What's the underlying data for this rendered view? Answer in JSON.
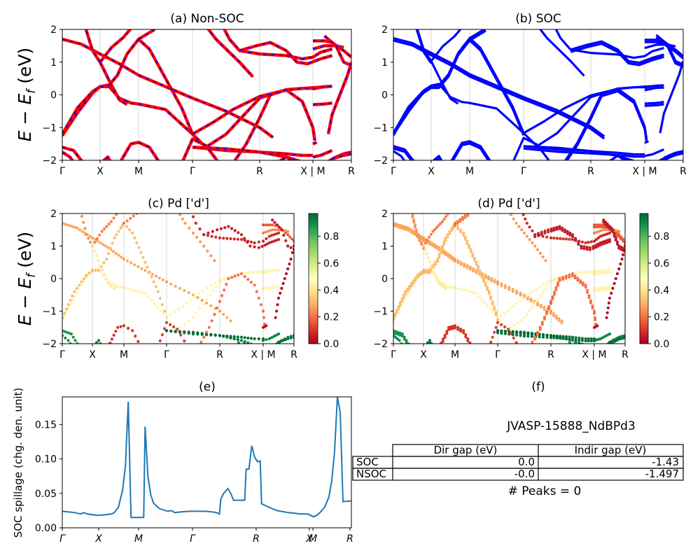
{
  "chart_data": [
    {
      "panel": "a",
      "type": "line",
      "title": "(a) Non-SOC",
      "ylabel_main": "E − E",
      "ylabel_sub": "f",
      "ylabel_unit": " (eV)",
      "ylim": [
        -2,
        2
      ],
      "yticks": [
        "2",
        "1",
        "0",
        "−1",
        "−2"
      ],
      "kpath": [
        "Γ",
        "X",
        "M",
        "Γ",
        "R",
        "X | M",
        "R"
      ],
      "colors": {
        "bands": "#ff0000",
        "dash": "#0000ff"
      }
    },
    {
      "panel": "b",
      "type": "line",
      "title": "(b) SOC",
      "ylim": [
        -2,
        2
      ],
      "yticks": [
        "2",
        "1",
        "0",
        "−1",
        "−2"
      ],
      "kpath": [
        "Γ",
        "X",
        "M",
        "Γ",
        "R",
        "X | M",
        "R"
      ],
      "colors": {
        "bands": "#0000ff"
      }
    },
    {
      "panel": "c",
      "type": "scatter",
      "title": "(c)  Pd ['d']",
      "ylabel_main": "E − E",
      "ylabel_sub": "f",
      "ylabel_unit": " (eV)",
      "ylim": [
        -2,
        2
      ],
      "yticks": [
        "2",
        "1",
        "0",
        "−1",
        "−2"
      ],
      "kpath": [
        "Γ",
        "X",
        "M",
        "Γ",
        "R",
        "X | M",
        "R"
      ],
      "colorbar_ticks": [
        "0.8",
        "0.6",
        "0.4",
        "0.2",
        "0.0"
      ],
      "colorbar_range": [
        0,
        0.97
      ],
      "colormap": "RdYlGn"
    },
    {
      "panel": "d",
      "type": "scatter",
      "title": "(d) Pd ['d']",
      "ylim": [
        -2,
        2
      ],
      "yticks": [
        "2",
        "1",
        "0",
        "−1",
        "−2"
      ],
      "kpath": [
        "Γ",
        "X",
        "M",
        "Γ",
        "R",
        "X | M",
        "R"
      ],
      "colorbar_ticks": [
        "0.8",
        "0.6",
        "0.4",
        "0.2",
        "0.0"
      ],
      "colorbar_range": [
        0,
        0.97
      ],
      "colormap": "RdYlGn"
    },
    {
      "panel": "e",
      "type": "line",
      "title": "(e)",
      "ylabel": "SOC spillage (chg. den. unit)",
      "ylim": [
        0,
        0.19
      ],
      "yticks": [
        "0.15",
        "0.10",
        "0.05",
        "0.00"
      ],
      "xticks": [
        "Γ",
        "X",
        "M",
        "Γ",
        "R",
        "X",
        "M",
        "R"
      ],
      "color": "#1f77b4",
      "x": [
        0,
        1,
        2,
        3,
        4,
        5,
        6,
        7,
        8,
        9,
        10,
        11,
        12,
        13,
        14,
        15,
        16,
        17,
        18,
        19,
        20,
        21,
        22,
        23,
        24,
        25,
        26,
        27,
        28,
        29,
        30,
        31,
        32,
        33,
        34,
        35,
        36,
        37,
        38,
        39,
        40,
        41,
        42,
        43,
        44,
        45,
        46,
        47,
        48,
        49,
        50,
        51,
        52,
        53,
        54,
        55,
        56,
        57,
        58,
        59,
        60,
        61,
        62,
        63,
        64,
        65,
        66,
        67,
        68,
        69,
        70,
        71,
        72,
        73,
        74,
        75,
        76,
        77,
        78,
        79,
        80,
        81,
        82,
        83,
        84,
        85,
        86,
        87,
        88,
        89,
        90,
        91,
        92,
        93,
        94,
        95,
        96,
        97,
        98,
        99,
        100,
        101,
        102,
        103,
        104,
        105,
        106,
        107,
        108,
        109,
        110,
        111,
        112,
        113,
        114,
        115,
        116,
        117,
        118,
        119,
        120,
        121,
        122,
        123,
        124,
        125,
        126,
        127,
        128,
        129,
        130,
        131,
        132,
        133,
        134,
        135,
        136,
        137,
        138,
        139,
        140,
        141,
        142,
        143,
        144,
        145,
        146,
        147,
        148,
        149,
        150,
        151,
        152,
        153,
        154,
        155,
        156,
        157,
        158,
        159,
        160,
        161,
        162,
        163,
        164,
        165,
        166,
        167,
        168,
        169,
        170,
        171,
        172,
        173,
        174,
        175,
        176,
        177,
        178,
        179,
        180,
        181,
        182,
        183,
        184,
        185,
        186,
        187,
        188,
        189,
        190,
        191,
        192,
        193,
        194,
        195,
        196,
        197,
        198,
        199,
        200,
        201,
        202,
        203,
        204,
        205,
        206,
        207,
        208,
        209,
        210,
        211,
        212,
        213,
        214,
        215,
        216,
        217,
        218,
        219,
        220,
        221,
        222,
        223,
        224,
        225,
        226,
        227,
        228,
        229,
        230,
        231,
        232,
        233,
        234,
        235,
        236,
        237,
        238,
        239,
        240,
        241,
        242,
        243,
        244,
        245,
        246,
        247,
        248,
        249,
        250,
        251,
        252,
        253,
        254,
        255,
        256,
        257,
        258,
        259,
        260,
        261,
        262,
        263,
        264,
        265,
        266,
        267,
        268,
        269,
        270,
        271,
        272,
        273,
        274,
        275,
        276,
        277,
        278,
        279,
        280,
        281,
        282,
        283,
        284,
        285,
        286,
        287,
        288,
        289,
        290,
        291,
        292,
        293,
        294,
        295,
        296,
        297,
        298,
        299,
        300,
        301,
        302,
        303,
        304,
        305,
        306,
        307,
        308,
        309,
        310,
        311,
        312,
        313,
        314,
        315,
        316,
        317,
        318,
        319,
        320,
        321,
        322,
        323,
        324,
        325,
        326,
        327,
        328,
        329,
        330,
        331,
        332,
        333,
        334,
        335,
        336,
        337,
        338,
        339,
        340,
        341,
        342,
        343,
        344,
        345,
        346,
        347,
        348,
        349,
        350,
        351,
        352,
        353,
        354,
        355,
        356,
        357,
        358,
        359,
        360,
        361,
        362,
        363,
        364,
        365,
        366,
        367,
        368,
        369,
        370,
        371,
        372,
        373,
        374,
        375,
        376,
        377,
        378,
        379,
        380,
        381,
        382,
        383,
        384,
        385,
        386,
        387,
        388,
        389,
        390,
        391,
        392,
        393,
        394,
        395,
        396,
        397,
        398,
        399,
        400,
        401,
        402,
        403,
        404,
        405,
        406,
        407,
        408,
        409,
        410,
        411,
        412
      ],
      "points": [
        [
          0,
          0.024
        ],
        [
          18,
          0.022
        ],
        [
          26,
          0.02
        ],
        [
          30,
          0.022
        ],
        [
          36,
          0.02
        ],
        [
          50,
          0.018
        ],
        [
          62,
          0.019
        ],
        [
          70,
          0.02
        ],
        [
          74,
          0.022
        ],
        [
          80,
          0.03
        ],
        [
          86,
          0.055
        ],
        [
          90,
          0.09
        ],
        [
          94,
          0.183
        ],
        [
          98,
          0.015
        ],
        [
          112,
          0.015
        ],
        [
          116,
          0.015
        ],
        [
          118,
          0.147
        ],
        [
          122,
          0.075
        ],
        [
          126,
          0.048
        ],
        [
          130,
          0.036
        ],
        [
          138,
          0.028
        ],
        [
          150,
          0.024
        ],
        [
          156,
          0.025
        ],
        [
          160,
          0.022
        ],
        [
          168,
          0.023
        ],
        [
          182,
          0.024
        ],
        [
          204,
          0.024
        ],
        [
          214,
          0.023
        ],
        [
          220,
          0.022
        ],
        [
          224,
          0.02
        ],
        [
          226,
          0.042
        ],
        [
          230,
          0.05
        ],
        [
          236,
          0.057
        ],
        [
          240,
          0.05
        ],
        [
          242,
          0.045
        ],
        [
          244,
          0.04
        ],
        [
          254,
          0.04
        ],
        [
          260,
          0.04
        ],
        [
          262,
          0.085
        ],
        [
          266,
          0.085
        ],
        [
          270,
          0.119
        ],
        [
          274,
          0.103
        ],
        [
          278,
          0.096
        ],
        [
          282,
          0.097
        ],
        [
          284,
          0.035
        ],
        [
          294,
          0.03
        ],
        [
          306,
          0.025
        ],
        [
          322,
          0.022
        ],
        [
          340,
          0.02
        ],
        [
          350,
          0.02
        ],
        [
          354,
          0.018
        ],
        [
          358,
          0.016
        ],
        [
          364,
          0.019
        ],
        [
          368,
          0.023
        ],
        [
          374,
          0.03
        ],
        [
          380,
          0.045
        ],
        [
          384,
          0.068
        ],
        [
          388,
          0.11
        ],
        [
          392,
          0.19
        ],
        [
          396,
          0.168
        ],
        [
          400,
          0.038
        ],
        [
          412,
          0.039
        ]
      ]
    },
    {
      "panel": "f",
      "type": "table",
      "title": "(f)",
      "subtitle": "JVASP-15888_NdBPd3",
      "columns": [
        "Dir gap (eV)",
        "Indir gap (eV)"
      ],
      "rows": [
        {
          "label": "SOC",
          "values": [
            "0.0",
            "-1.43"
          ]
        },
        {
          "label": "NSOC",
          "values": [
            "-0.0",
            "-1.497"
          ]
        }
      ],
      "footer": "# Peaks = 0"
    }
  ]
}
